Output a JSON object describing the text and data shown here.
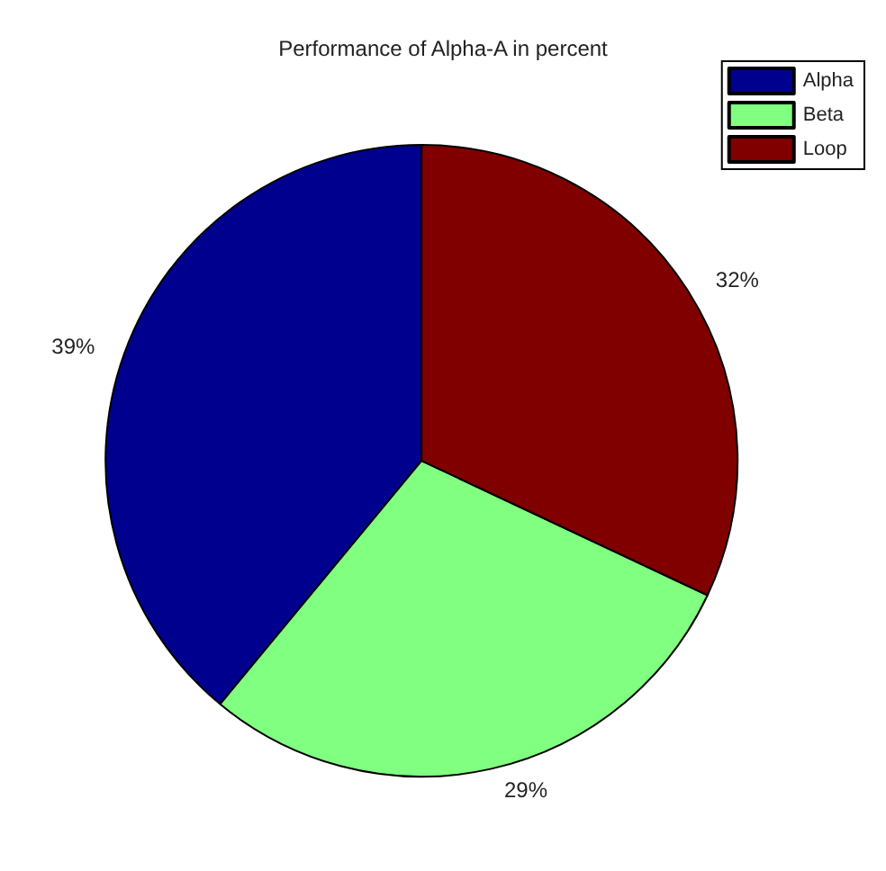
{
  "chart_data": {
    "type": "pie",
    "title": "Performance of Alpha-A in percent",
    "categories": [
      "Alpha",
      "Beta",
      "Loop"
    ],
    "values": [
      39,
      29,
      32
    ],
    "colors": [
      "#00008f",
      "#80ff80",
      "#800000"
    ],
    "value_labels": [
      "39%",
      "29%",
      "32%"
    ],
    "legend": "top right"
  }
}
